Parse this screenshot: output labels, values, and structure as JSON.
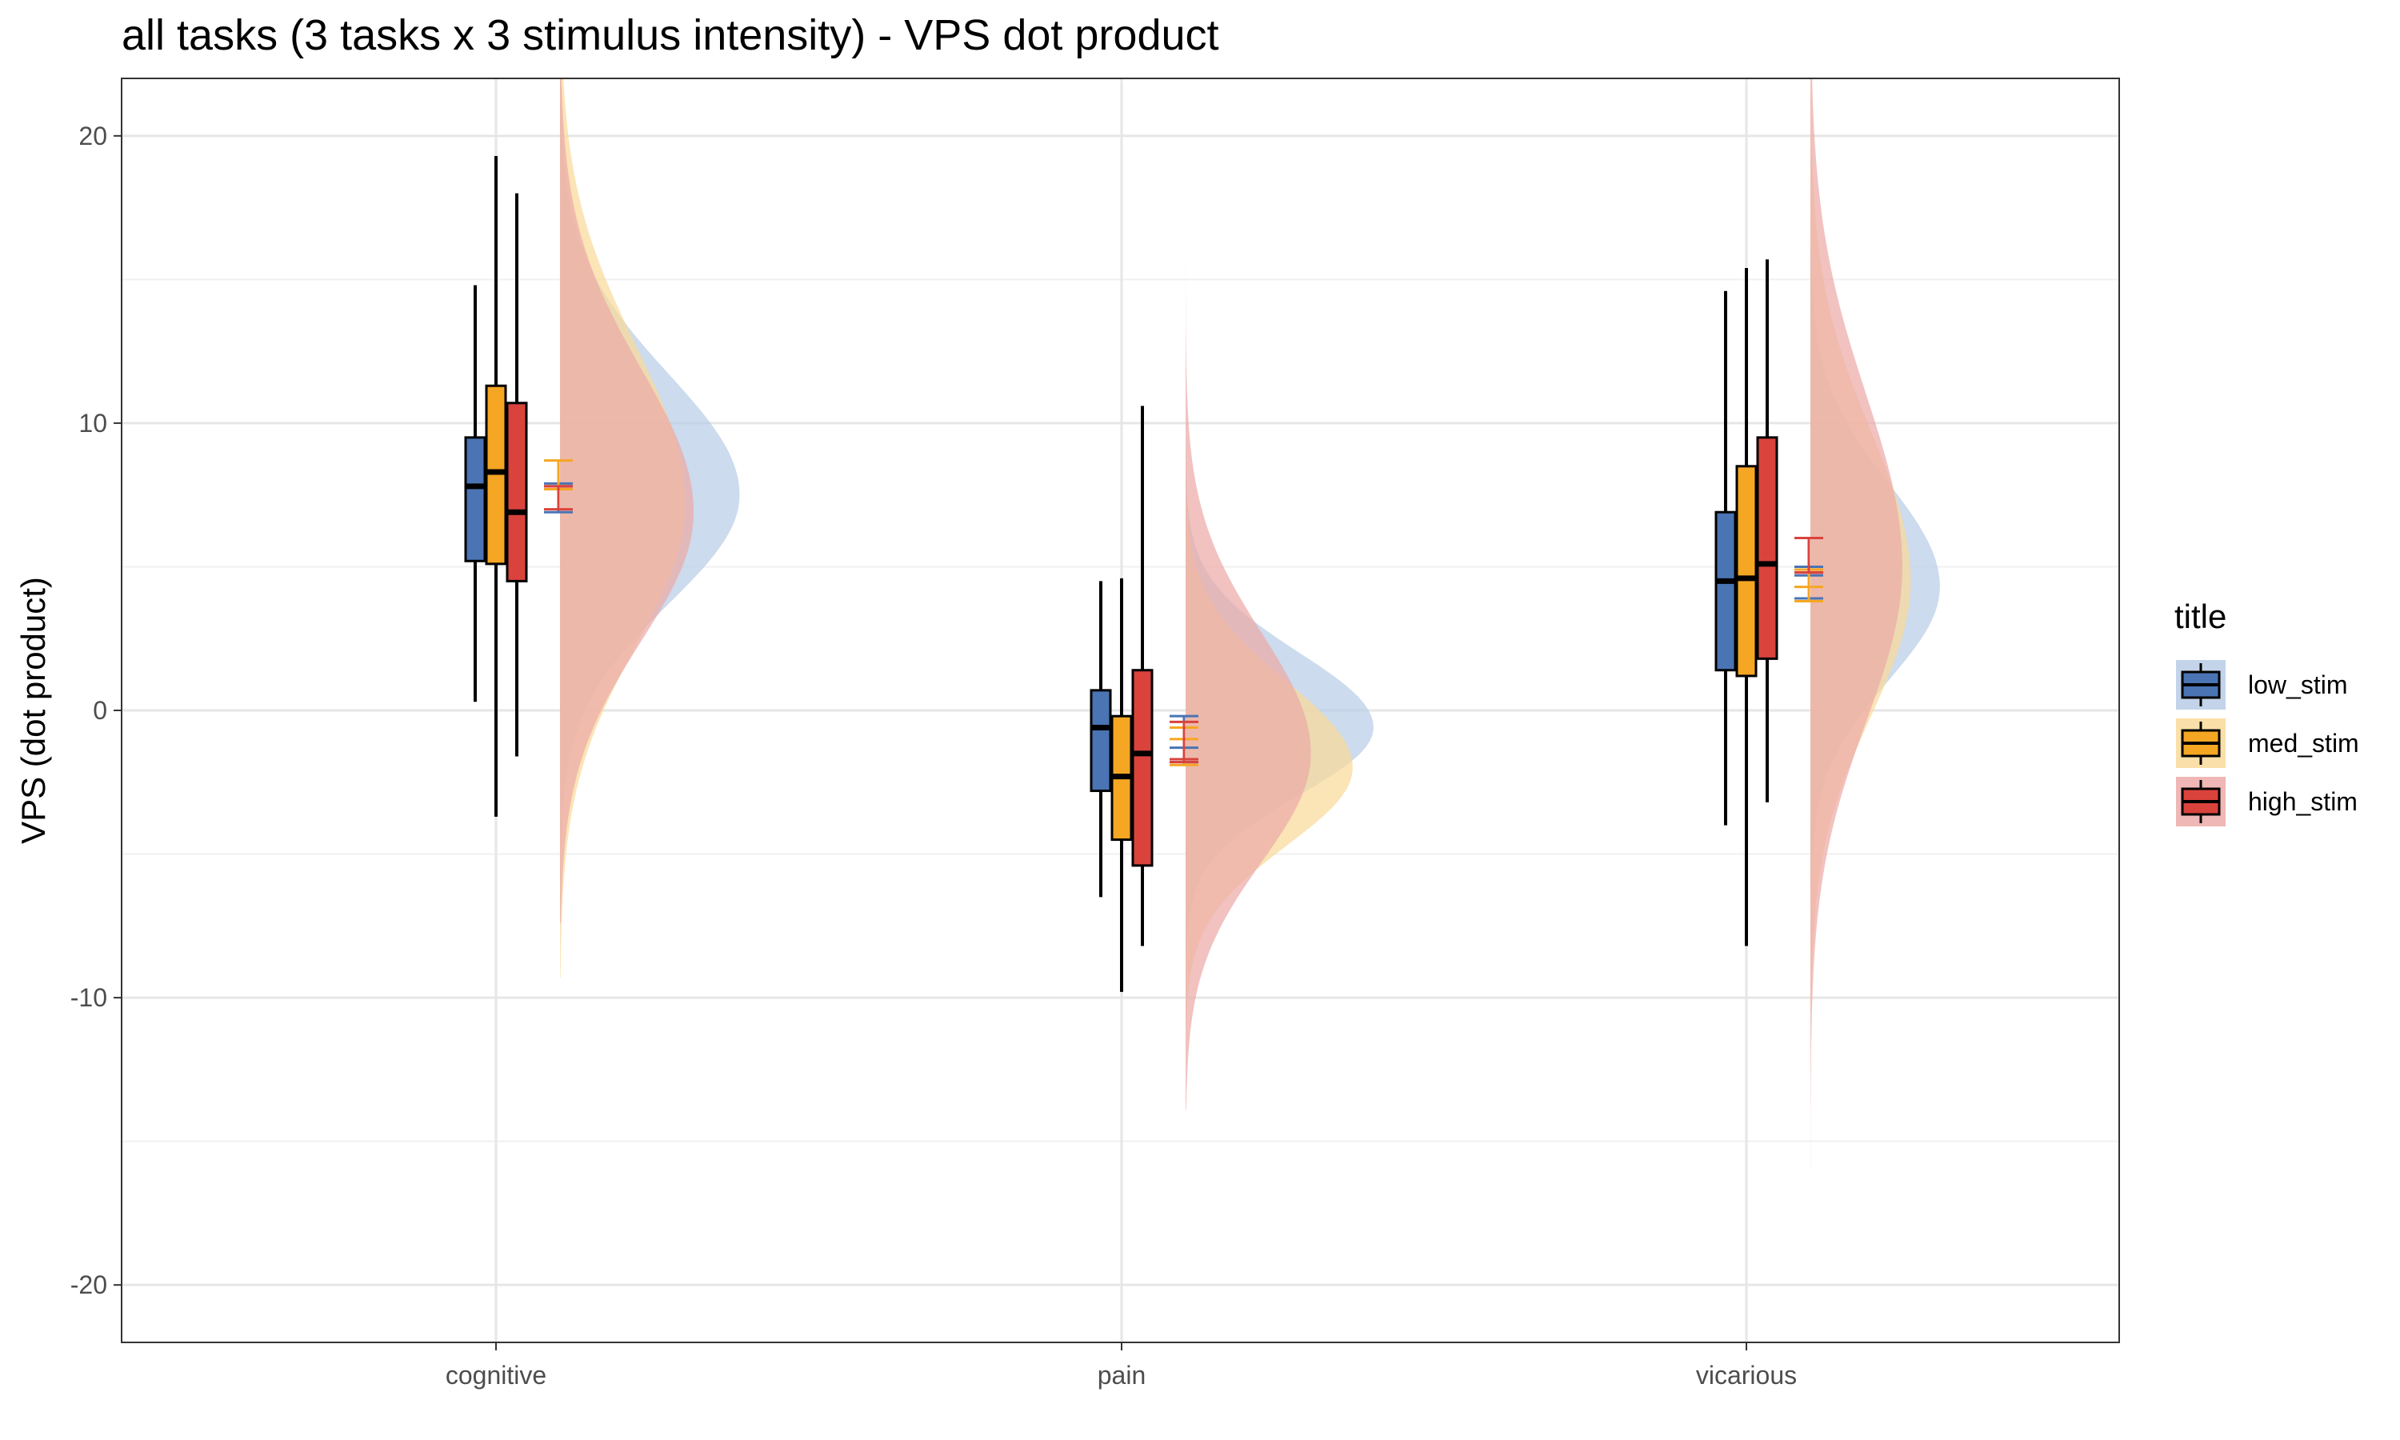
{
  "chart_data": {
    "type": "raincloud",
    "title": "all tasks  (3 tasks x 3 stimulus intensity) - VPS dot product",
    "xlabel": "",
    "ylabel": "VPS (dot product)",
    "categories": [
      "cognitive",
      "pain",
      "vicarious"
    ],
    "y_ticks": [
      20,
      10,
      0,
      -10,
      -20
    ],
    "y_tick_labels": [
      "20",
      "10",
      "0",
      "-10",
      "-20"
    ],
    "ylim": [
      -22,
      22
    ],
    "grid": true,
    "legend": {
      "title": "title",
      "position": "right",
      "entries": [
        "low_stim",
        "med_stim",
        "high_stim"
      ]
    },
    "colors": {
      "low_stim": "#4a74b4",
      "med_stim": "#f5a623",
      "high_stim": "#d9433c"
    },
    "fill_colors": {
      "low_stim": "#b9cde6",
      "med_stim": "#fad99a",
      "high_stim": "#ecaaa8"
    },
    "series": [
      {
        "name": "low_stim",
        "boxes": [
          {
            "category": "cognitive",
            "whisker_low": 0.3,
            "q1": 5.2,
            "median": 7.8,
            "q3": 9.5,
            "whisker_high": 14.8,
            "mean": 7.8,
            "mean_ci": [
              6.9,
              7.9
            ]
          },
          {
            "category": "pain",
            "whisker_low": -6.5,
            "q1": -2.8,
            "median": -0.6,
            "q3": 0.7,
            "whisker_high": 4.5,
            "mean": -1.3,
            "mean_ci": [
              -1.8,
              -0.2
            ]
          },
          {
            "category": "vicarious",
            "whisker_low": -4.0,
            "q1": 1.4,
            "median": 4.5,
            "q3": 6.9,
            "whisker_high": 14.6,
            "mean": 4.7,
            "mean_ci": [
              3.9,
              5.0
            ]
          }
        ]
      },
      {
        "name": "med_stim",
        "boxes": [
          {
            "category": "cognitive",
            "whisker_low": -3.7,
            "q1": 5.1,
            "median": 8.3,
            "q3": 11.3,
            "whisker_high": 19.3,
            "mean": 7.7,
            "mean_ci": [
              7.8,
              8.7
            ]
          },
          {
            "category": "pain",
            "whisker_low": -9.8,
            "q1": -4.5,
            "median": -2.3,
            "q3": -0.2,
            "whisker_high": 4.6,
            "mean": -1.0,
            "mean_ci": [
              -1.9,
              -0.6
            ]
          },
          {
            "category": "vicarious",
            "whisker_low": -8.2,
            "q1": 1.2,
            "median": 4.6,
            "q3": 8.5,
            "whisker_high": 15.4,
            "mean": 4.3,
            "mean_ci": [
              3.8,
              4.9
            ]
          }
        ]
      },
      {
        "name": "high_stim",
        "boxes": [
          {
            "category": "cognitive",
            "whisker_low": -1.6,
            "q1": 4.5,
            "median": 6.9,
            "q3": 10.7,
            "whisker_high": 18.0,
            "mean": 7.8,
            "mean_ci": [
              7.0,
              7.8
            ]
          },
          {
            "category": "pain",
            "whisker_low": -8.2,
            "q1": -5.4,
            "median": -1.5,
            "q3": 1.4,
            "whisker_high": 10.6,
            "mean": -1.7,
            "mean_ci": [
              -1.8,
              -0.4
            ]
          },
          {
            "category": "vicarious",
            "whisker_low": -3.2,
            "q1": 1.8,
            "median": 5.1,
            "q3": 9.5,
            "whisker_high": 15.7,
            "mean": 4.8,
            "mean_ci": [
              4.8,
              6.0
            ]
          }
        ]
      }
    ],
    "densities": [
      {
        "category": "cognitive",
        "curves": [
          {
            "series": "low_stim",
            "y_min": -6.0,
            "y_max": 22,
            "peak_y": 7.5,
            "peak_width": 4.3,
            "spread": 4.2
          },
          {
            "series": "med_stim",
            "y_min": -9.3,
            "y_max": 22,
            "peak_y": 7.2,
            "peak_width": 3.0,
            "spread": 5.5
          },
          {
            "series": "high_stim",
            "y_min": -7.4,
            "y_max": 22,
            "peak_y": 6.9,
            "peak_width": 3.2,
            "spread": 5.0
          }
        ]
      },
      {
        "category": "pain",
        "curves": [
          {
            "series": "low_stim",
            "y_min": -13.0,
            "y_max": 13.5,
            "peak_y": -0.6,
            "peak_width": 4.5,
            "spread": 2.6
          },
          {
            "series": "med_stim",
            "y_min": -13.5,
            "y_max": 14.0,
            "peak_y": -2.0,
            "peak_width": 4.0,
            "spread": 3.0
          },
          {
            "series": "high_stim",
            "y_min": -13.9,
            "y_max": 16.1,
            "peak_y": -1.5,
            "peak_width": 3.0,
            "spread": 4.2
          }
        ]
      },
      {
        "category": "vicarious",
        "curves": [
          {
            "series": "low_stim",
            "y_min": -8.5,
            "y_max": 20.0,
            "peak_y": 4.3,
            "peak_width": 3.1,
            "spread": 3.6
          },
          {
            "series": "med_stim",
            "y_min": -10.5,
            "y_max": 22,
            "peak_y": 4.5,
            "peak_width": 2.4,
            "spread": 5.2
          },
          {
            "series": "high_stim",
            "y_min": -21.3,
            "y_max": 22,
            "peak_y": 5.0,
            "peak_width": 2.2,
            "spread": 6.0
          }
        ]
      }
    ]
  }
}
